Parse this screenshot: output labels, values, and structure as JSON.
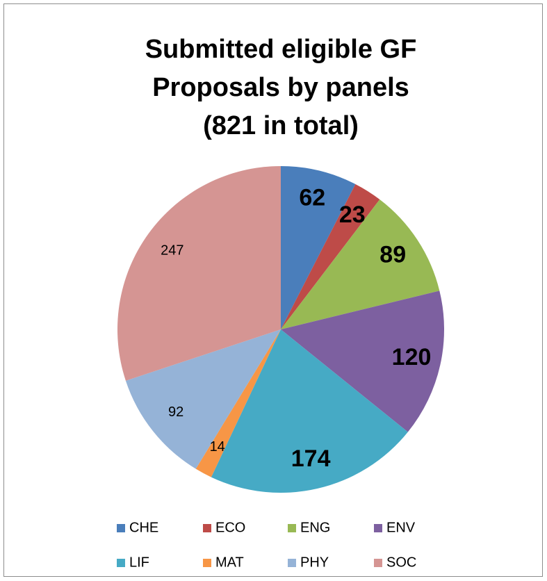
{
  "chart_data": {
    "type": "pie",
    "title": [
      "Submitted eligible GF",
      "Proposals by panels",
      "(821 in total)"
    ],
    "categories": [
      "CHE",
      "ECO",
      "ENG",
      "ENV",
      "LIF",
      "MAT",
      "PHY",
      "SOC"
    ],
    "values": [
      62,
      23,
      89,
      120,
      174,
      14,
      92,
      247
    ],
    "colors": [
      "#4a7ebb",
      "#be4b48",
      "#98b954",
      "#7d60a0",
      "#46aac5",
      "#f79646",
      "#95b3d7",
      "#d59593"
    ],
    "legend": "bottom"
  }
}
